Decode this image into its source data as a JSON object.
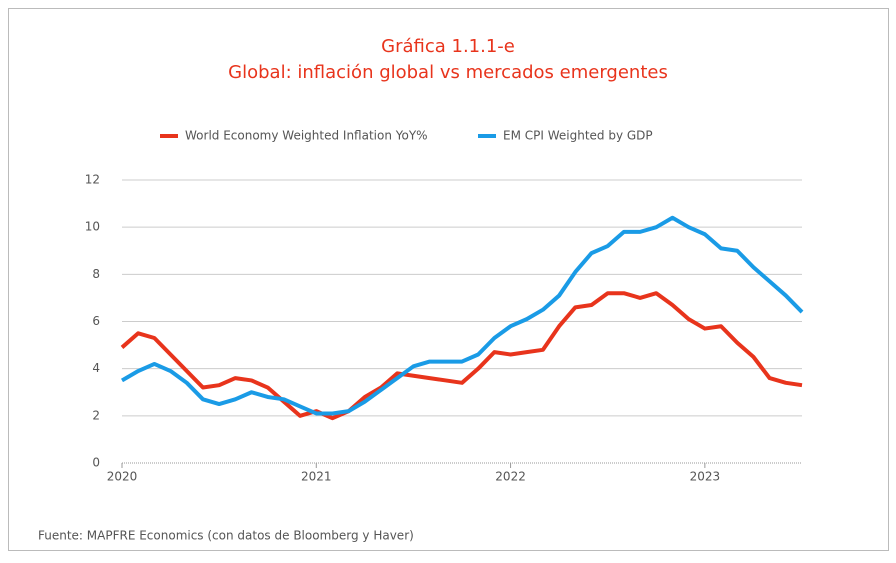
{
  "chart_data": {
    "type": "line",
    "title": "Gráfica 1.1.1-e",
    "subtitle": "Global: inflación global vs mercados emergentes",
    "source": "Fuente: MAPFRE Economics (con datos de Bloomberg y Haver)",
    "categories": [
      "2020",
      null,
      null,
      null,
      null,
      null,
      null,
      null,
      null,
      null,
      null,
      null,
      "2021",
      null,
      null,
      null,
      null,
      null,
      null,
      null,
      null,
      null,
      null,
      null,
      "2022",
      null,
      null,
      null,
      null,
      null,
      null,
      null,
      null,
      null,
      null,
      null,
      "2023",
      null,
      null,
      null,
      null,
      null,
      null
    ],
    "series": [
      {
        "name": "World Economy Weighted Inflation YoY%",
        "color": "#e8341c",
        "values": [
          4.9,
          5.5,
          5.3,
          4.6,
          3.9,
          3.2,
          3.3,
          3.6,
          3.5,
          3.2,
          2.6,
          2.0,
          2.2,
          1.9,
          2.2,
          2.8,
          3.2,
          3.8,
          3.7,
          3.6,
          3.5,
          3.4,
          4.0,
          4.7,
          4.6,
          4.7,
          4.8,
          5.8,
          6.6,
          6.7,
          7.2,
          7.2,
          7.0,
          7.2,
          6.7,
          6.1,
          5.7,
          5.8,
          5.1,
          4.5,
          3.6,
          3.4,
          3.3
        ]
      },
      {
        "name": "EM CPI Weighted by GDP",
        "color": "#1a9be6",
        "values": [
          3.5,
          3.9,
          4.2,
          3.9,
          3.4,
          2.7,
          2.5,
          2.7,
          3.0,
          2.8,
          2.7,
          2.4,
          2.1,
          2.1,
          2.2,
          2.6,
          3.1,
          3.6,
          4.1,
          4.3,
          4.3,
          4.3,
          4.6,
          5.3,
          5.8,
          6.1,
          6.5,
          7.1,
          8.1,
          8.9,
          9.2,
          9.8,
          9.8,
          10.0,
          10.4,
          10.0,
          9.7,
          9.1,
          9.0,
          8.3,
          7.7,
          7.1,
          6.4
        ]
      }
    ],
    "ylim": [
      0,
      12
    ],
    "yticks": [
      0,
      2,
      4,
      6,
      8,
      10,
      12
    ],
    "grid": true
  }
}
